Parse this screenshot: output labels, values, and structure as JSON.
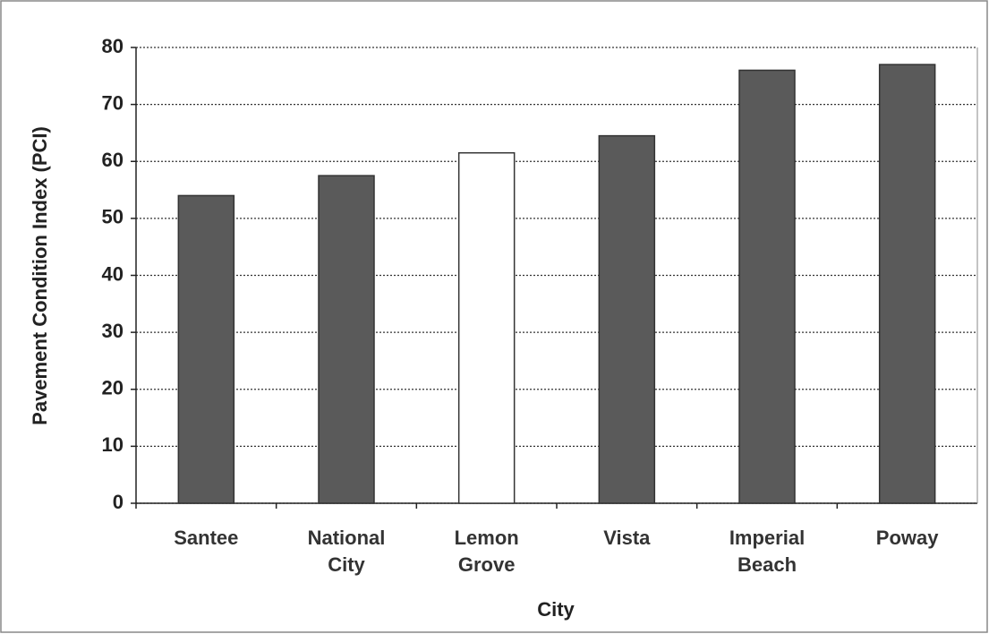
{
  "chart_data": {
    "type": "bar",
    "x_label": "City",
    "y_label": "Pavement Condition Index (PCI)",
    "categories": [
      "Santee",
      "National City",
      "Lemon Grove",
      "Vista",
      "Imperial Beach",
      "Poway"
    ],
    "values": [
      54,
      57.5,
      61.5,
      64.5,
      76,
      77
    ],
    "colors": [
      "#5a5a5a",
      "#5a5a5a",
      "#ffffff",
      "#5a5a5a",
      "#5a5a5a",
      "#5a5a5a"
    ],
    "ylim": [
      0,
      80
    ],
    "yticks": [
      0,
      10,
      20,
      30,
      40,
      50,
      60,
      70,
      80
    ],
    "grid": true
  }
}
